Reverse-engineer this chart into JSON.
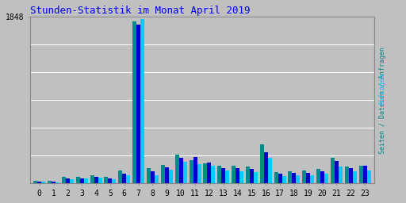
{
  "title": "Stunden-Statistik im Monat April 2019",
  "title_color": "#0000EE",
  "title_fontsize": 9,
  "ylim_max": 1848,
  "ytick_val": 1848,
  "hours": [
    0,
    1,
    2,
    3,
    4,
    5,
    6,
    7,
    8,
    9,
    10,
    11,
    12,
    13,
    14,
    15,
    16,
    17,
    18,
    19,
    20,
    21,
    22,
    23
  ],
  "seiten": [
    32,
    28,
    72,
    72,
    92,
    70,
    145,
    1800,
    175,
    205,
    320,
    255,
    225,
    200,
    195,
    190,
    430,
    128,
    138,
    140,
    160,
    288,
    188,
    200
  ],
  "dateien": [
    24,
    20,
    58,
    58,
    72,
    52,
    108,
    1760,
    135,
    182,
    282,
    290,
    228,
    175,
    170,
    160,
    348,
    105,
    115,
    120,
    135,
    248,
    175,
    195
  ],
  "anfragen": [
    20,
    16,
    48,
    54,
    64,
    45,
    90,
    1820,
    95,
    150,
    245,
    215,
    195,
    145,
    135,
    125,
    285,
    85,
    92,
    92,
    108,
    190,
    135,
    145
  ],
  "color_seiten": "#008B8B",
  "color_dateien": "#0000CC",
  "color_anfragen": "#00CCFF",
  "bg_color": "#C0C0C0",
  "plot_bg": "#C0C0C0",
  "bar_width": 0.28,
  "grid_color": "white",
  "font_family": "monospace",
  "right_label_part1": "Seiten / Dateien / ",
  "right_label_part2": "Anfragen",
  "right_color1": "#008B8B",
  "right_color2": "#00CCFF"
}
